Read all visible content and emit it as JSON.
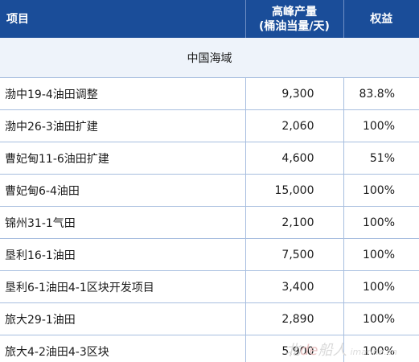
{
  "header": {
    "item": "项目",
    "peak_line1": "高峰产量",
    "peak_line2": "(桶油当量/天)",
    "equity": "权益"
  },
  "section": "中国海域",
  "rows": [
    {
      "name": "渤中19-4油田调整",
      "peak": "9,300",
      "equity": "83.8%"
    },
    {
      "name": "渤中26-3油田扩建",
      "peak": "2,060",
      "equity": "100%"
    },
    {
      "name": "曹妃甸11-6油田扩建",
      "peak": "4,600",
      "equity": "51%"
    },
    {
      "name": "曹妃甸6-4油田",
      "peak": "15,000",
      "equity": "100%"
    },
    {
      "name": "锦州31-1气田",
      "peak": "2,100",
      "equity": "100%"
    },
    {
      "name": "垦利16-1油田",
      "peak": "7,500",
      "equity": "100%"
    },
    {
      "name": "垦利6-1油田4-1区块开发项目",
      "peak": "3,400",
      "equity": "100%"
    },
    {
      "name": "旅大29-1油田",
      "peak": "2,890",
      "equity": "100%"
    },
    {
      "name": "旅大4-2油田4-3区块",
      "peak": "5,900",
      "equity": "100%"
    }
  ],
  "watermark": {
    "text": "北",
    "brand": "de",
    "text2": "船人",
    "url": "imarine.cn"
  }
}
